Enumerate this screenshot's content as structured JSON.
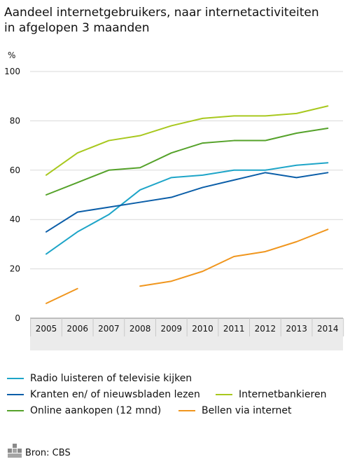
{
  "title_line1": "Aandeel internetgebruikers, naar internetactiviteiten",
  "title_line2": "in afgelopen 3 maanden",
  "source": "Bron: CBS",
  "logo_label": "cbs",
  "chart_data": {
    "type": "line",
    "unit": "%",
    "ylim": [
      0,
      100
    ],
    "yticks": [
      0,
      20,
      40,
      60,
      80,
      100
    ],
    "x": [
      "2005",
      "2006",
      "2007",
      "2008",
      "2009",
      "2010",
      "2011",
      "2012",
      "2013",
      "2014"
    ],
    "grid": true,
    "legend": "bottom",
    "series": [
      {
        "name": "Radio luisteren of televisie kijken",
        "color": "#1ea5c8",
        "values": [
          26,
          35,
          42,
          52,
          57,
          58,
          60,
          60,
          62,
          63
        ]
      },
      {
        "name": "Kranten en/ of nieuwsbladen lezen",
        "color": "#0b5ea8",
        "values": [
          35,
          43,
          45,
          47,
          49,
          53,
          56,
          59,
          57,
          59
        ]
      },
      {
        "name": "Internetbankieren",
        "color": "#a8c81e",
        "values": [
          58,
          67,
          72,
          74,
          78,
          81,
          82,
          82,
          83,
          86
        ]
      },
      {
        "name": "Online aankopen (12 mnd)",
        "color": "#55a22a",
        "values": [
          50,
          55,
          60,
          61,
          67,
          71,
          72,
          72,
          75,
          77
        ]
      },
      {
        "name": "Bellen via internet",
        "color": "#f0961e",
        "values": [
          6,
          12,
          null,
          13,
          15,
          19,
          25,
          27,
          31,
          36
        ]
      }
    ]
  }
}
